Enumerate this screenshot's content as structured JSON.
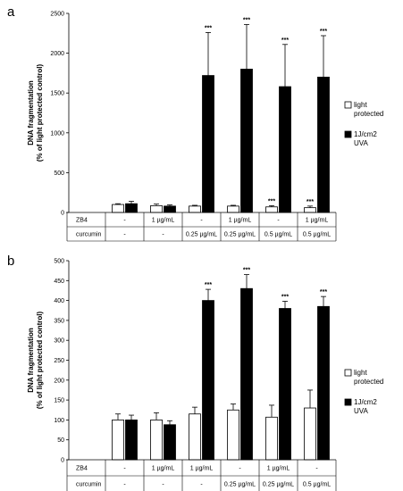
{
  "chart_data": [
    {
      "panel": "a",
      "type": "bar",
      "ylabel_line1": "DNA fragmentation",
      "ylabel_line2": "(% of light protected control)",
      "ylim": [
        0,
        2500
      ],
      "yticks": [
        0,
        500,
        1000,
        1500,
        2000,
        2500
      ],
      "table_rows": [
        {
          "label": "ZB4",
          "cells": [
            "-",
            "1 µg/mL",
            "-",
            "1 µg/mL",
            "-",
            "1 µg/mL"
          ]
        },
        {
          "label": "curcumin",
          "cells": [
            "-",
            "-",
            "0.25 µg/mL",
            "0.25 µg/mL",
            "0.5 µg/mL",
            "0.5 µg/mL"
          ]
        }
      ],
      "series": [
        {
          "name": "light protected",
          "color": "#ffffff",
          "values": [
            100,
            85,
            80,
            80,
            70,
            60
          ],
          "errors": [
            10,
            20,
            10,
            10,
            15,
            20
          ],
          "stars": [
            "",
            "",
            "",
            "",
            "***",
            "***"
          ]
        },
        {
          "name": "1J/cm2 UVA",
          "color": "#000000",
          "values": [
            110,
            80,
            1720,
            1800,
            1580,
            1700
          ],
          "errors": [
            30,
            15,
            540,
            560,
            530,
            520
          ],
          "stars": [
            "",
            "",
            "***",
            "***",
            "***",
            "***"
          ]
        }
      ],
      "legend_position": "right",
      "grid": false
    },
    {
      "panel": "b",
      "type": "bar",
      "ylabel_line1": "DNA fragmentation",
      "ylabel_line2": "(% of light protected control)",
      "ylim": [
        0,
        500
      ],
      "yticks": [
        0,
        50,
        100,
        150,
        200,
        250,
        300,
        350,
        400,
        450,
        500
      ],
      "table_rows": [
        {
          "label": "ZB4",
          "cells": [
            "-",
            "1 µg/mL",
            "1 µg/mL",
            "-",
            "1 µg/mL",
            "-"
          ]
        },
        {
          "label": "curcumin",
          "cells": [
            "-",
            "-",
            "-",
            "0.25 µg/mL",
            "0.25 µg/mL",
            "0.5 µg/mL"
          ]
        }
      ],
      "series": [
        {
          "name": "light protected",
          "color": "#ffffff",
          "values": [
            100,
            100,
            115,
            125,
            107,
            130
          ],
          "errors": [
            15,
            18,
            17,
            15,
            30,
            45
          ],
          "stars": [
            "",
            "",
            "",
            "",
            "",
            ""
          ]
        },
        {
          "name": "1J/cm2 UVA",
          "color": "#000000",
          "values": [
            100,
            88,
            400,
            430,
            380,
            385
          ],
          "errors": [
            12,
            10,
            28,
            35,
            18,
            25
          ],
          "stars": [
            "",
            "",
            "***",
            "***",
            "***",
            "***"
          ]
        }
      ],
      "legend_position": "right",
      "grid": false
    }
  ]
}
